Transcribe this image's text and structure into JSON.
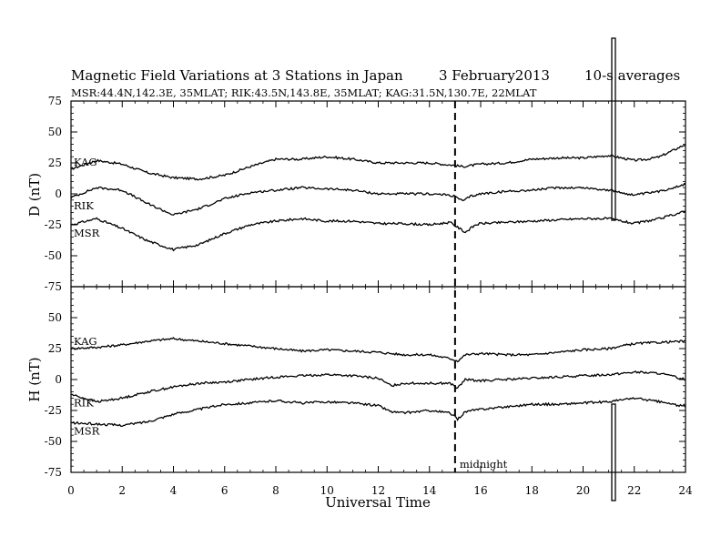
{
  "title": {
    "main": "Magnetic Field Variations at 3 Stations in Japan",
    "date": "3   February2013",
    "averaging": "10-s averages",
    "stations_line": "MSR:44.4N,142.3E, 35MLAT;  RIK:43.5N,143.8E, 35MLAT;  KAG:31.5N,130.7E, 22MLAT"
  },
  "chart_data": {
    "type": "line",
    "xlabel": "Universal Time",
    "xlim": [
      0,
      24
    ],
    "xticks": [
      "0",
      "2",
      "4",
      "6",
      "8",
      "10",
      "12",
      "14",
      "16",
      "18",
      "20",
      "22",
      "24"
    ],
    "annotations": {
      "midnight_x": 15,
      "midnight_label": "midnight"
    },
    "panels": [
      {
        "id": "D",
        "ylabel": "D (nT)",
        "ylim": [
          -75,
          75
        ],
        "yticks": [
          "75",
          "50",
          "25",
          "0",
          "-25",
          "-50",
          "-75"
        ],
        "series": [
          {
            "name": "KAG",
            "x": [
              0,
              1,
              2,
              3,
              4,
              5,
              6,
              7,
              8,
              9,
              10,
              11,
              12,
              13,
              14,
              15,
              15.3,
              16,
              17,
              18,
              19,
              20,
              21,
              22,
              22.5,
              23,
              23.5,
              24
            ],
            "y": [
              20,
              27,
              24,
              17,
              13,
              12,
              15,
              22,
              28,
              28,
              30,
              28,
              25,
              25,
              25,
              23,
              22,
              24,
              25,
              28,
              29,
              29,
              31,
              27,
              28,
              30,
              35,
              40
            ]
          },
          {
            "name": "RIK",
            "x": [
              0,
              1,
              2,
              3,
              4,
              5,
              6,
              7,
              8,
              9,
              10,
              11,
              12,
              13,
              14,
              14.8,
              15.1,
              15.3,
              15.6,
              16,
              17,
              18,
              19,
              20,
              21,
              22,
              23,
              24
            ],
            "y": [
              -3,
              5,
              3,
              -8,
              -17,
              -12,
              -4,
              1,
              3,
              5,
              4,
              3,
              0,
              0,
              0,
              -1,
              -3,
              -6,
              -2,
              0,
              2,
              3,
              5,
              5,
              3,
              -1,
              2,
              8
            ]
          },
          {
            "name": "MSR",
            "x": [
              0,
              1,
              2,
              3,
              4,
              5,
              6,
              7,
              8,
              9,
              10,
              11,
              12,
              13,
              14,
              14.8,
              15.1,
              15.4,
              15.8,
              16,
              17,
              18,
              19,
              20,
              21,
              22,
              23,
              24
            ],
            "y": [
              -25,
              -20,
              -28,
              -38,
              -45,
              -41,
              -32,
              -25,
              -22,
              -20,
              -22,
              -22,
              -24,
              -24,
              -25,
              -23,
              -27,
              -31,
              -25,
              -24,
              -23,
              -22,
              -21,
              -20,
              -20,
              -24,
              -20,
              -14
            ]
          }
        ]
      },
      {
        "id": "H",
        "ylabel": "H (nT)",
        "ylim": [
          -75,
          75
        ],
        "yticks": [
          "75",
          "50",
          "25",
          "0",
          "-25",
          "-50",
          "-75"
        ],
        "series": [
          {
            "name": "KAG",
            "x": [
              0,
              1,
              2,
              3,
              4,
              5,
              6,
              7,
              8,
              9,
              10,
              11,
              12,
              12.5,
              13,
              14,
              14.8,
              15.1,
              15.4,
              16,
              17,
              18,
              19,
              20,
              21,
              22,
              23,
              24
            ],
            "y": [
              25,
              26,
              28,
              31,
              33,
              31,
              29,
              27,
              25,
              23,
              24,
              23,
              22,
              21,
              20,
              20,
              17,
              15,
              20,
              21,
              20,
              20,
              22,
              24,
              25,
              29,
              30,
              31
            ]
          },
          {
            "name": "RIK",
            "x": [
              0,
              1,
              2,
              3,
              4,
              5,
              6,
              7,
              8,
              9,
              10,
              11,
              12,
              12.5,
              13,
              14,
              14.8,
              15.1,
              15.4,
              16,
              17,
              18,
              19,
              20,
              21,
              22,
              23,
              24
            ],
            "y": [
              -12,
              -18,
              -15,
              -10,
              -6,
              -3,
              -2,
              0,
              2,
              3,
              4,
              3,
              1,
              -5,
              -3,
              -3,
              -3,
              -7,
              0,
              -1,
              0,
              1,
              2,
              3,
              4,
              6,
              5,
              0
            ]
          },
          {
            "name": "MSR",
            "x": [
              0,
              1,
              2,
              3,
              4,
              5,
              6,
              7,
              8,
              9,
              10,
              11,
              12,
              12.5,
              13,
              14,
              14.8,
              15.1,
              15.4,
              16,
              17,
              18,
              19,
              20,
              21,
              22,
              23,
              24
            ],
            "y": [
              -35,
              -36,
              -37,
              -34,
              -28,
              -24,
              -20,
              -19,
              -17,
              -19,
              -18,
              -19,
              -21,
              -26,
              -27,
              -25,
              -27,
              -32,
              -26,
              -24,
              -22,
              -20,
              -20,
              -19,
              -18,
              -15,
              -18,
              -22
            ]
          }
        ]
      }
    ]
  }
}
